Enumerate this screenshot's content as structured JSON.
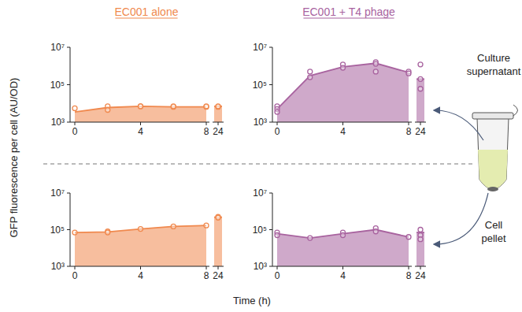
{
  "shared": {
    "ylabel": "GFP fluorescence per cell (AU/OD)",
    "xlabel": "Time (h)"
  },
  "chart_data": [
    {
      "type": "area",
      "title": "EC001 alone",
      "color": "#f0894e",
      "log": "y",
      "x": [
        0,
        2,
        4,
        6,
        8
      ],
      "values": [
        3500,
        6000,
        7000,
        6500,
        6500
      ],
      "replicates": [
        [
          5500
        ],
        [
          7000,
          4500
        ],
        [
          7000,
          7000
        ],
        [
          6500,
          7000
        ],
        [
          6500,
          7000
        ]
      ],
      "after_break": {
        "x": 24,
        "value": 7000,
        "replicates": [
          6500,
          7000
        ]
      },
      "xlim": [
        0,
        24
      ],
      "xticks": [
        0,
        4,
        8,
        24
      ],
      "ylim": [
        1000,
        10000000
      ],
      "yticks": [
        {
          "value": 1000,
          "label": "10³"
        },
        {
          "value": 100000,
          "label": "10⁵"
        },
        {
          "value": 10000000,
          "label": "10⁷"
        }
      ]
    },
    {
      "type": "area",
      "title": "EC001 + T4 phage",
      "annotation": "Culture supernatant",
      "color": "#a8639f",
      "log": "y",
      "x": [
        0,
        2,
        4,
        6,
        8
      ],
      "values": [
        5000,
        300000,
        900000,
        1400000,
        450000
      ],
      "replicates": [
        [
          7000,
          5000,
          3500
        ],
        [
          500000,
          250000
        ],
        [
          1200000,
          800000
        ],
        [
          1600000,
          500000,
          1300000
        ],
        [
          500000,
          400000
        ]
      ],
      "after_break": {
        "x": 24,
        "value": 200000,
        "replicates": [
          1200000,
          200000,
          60000
        ]
      },
      "xlim": [
        0,
        24
      ],
      "xticks": [
        0,
        4,
        8,
        24
      ],
      "ylim": [
        1000,
        10000000
      ],
      "yticks": [
        {
          "value": 1000,
          "label": "10³"
        },
        {
          "value": 100000,
          "label": "10⁵"
        },
        {
          "value": 10000000,
          "label": "10⁷"
        }
      ]
    },
    {
      "type": "area",
      "color": "#f0894e",
      "log": "y",
      "x": [
        0,
        2,
        4,
        6,
        8
      ],
      "values": [
        70000,
        75000,
        110000,
        150000,
        170000
      ],
      "replicates": [
        [
          70000
        ],
        [
          80000,
          70000
        ],
        [
          110000
        ],
        [
          150000
        ],
        [
          170000
        ]
      ],
      "after_break": {
        "x": 24,
        "value": 480000,
        "replicates": [
          500000,
          450000
        ]
      },
      "xlim": [
        0,
        24
      ],
      "xticks": [
        0,
        4,
        8,
        24
      ],
      "ylim": [
        1000,
        10000000
      ],
      "yticks": [
        {
          "value": 1000,
          "label": "10³"
        },
        {
          "value": 100000,
          "label": "10⁵"
        },
        {
          "value": 10000000,
          "label": "10⁷"
        }
      ]
    },
    {
      "type": "area",
      "annotation": "Cell pellet",
      "color": "#a8639f",
      "log": "y",
      "x": [
        0,
        2,
        4,
        6,
        8
      ],
      "values": [
        60000,
        35000,
        60000,
        100000,
        40000
      ],
      "replicates": [
        [
          70000,
          50000
        ],
        [
          35000
        ],
        [
          70000,
          50000
        ],
        [
          120000,
          80000
        ],
        [
          40000
        ]
      ],
      "after_break": {
        "x": 24,
        "value": 70000,
        "replicates": [
          100000,
          50000,
          30000
        ]
      },
      "xlim": [
        0,
        24
      ],
      "xticks": [
        0,
        4,
        8,
        24
      ],
      "ylim": [
        1000,
        10000000
      ],
      "yticks": [
        {
          "value": 1000,
          "label": "10³"
        },
        {
          "value": 100000,
          "label": "10⁵"
        },
        {
          "value": 10000000,
          "label": "10⁷"
        }
      ]
    }
  ]
}
